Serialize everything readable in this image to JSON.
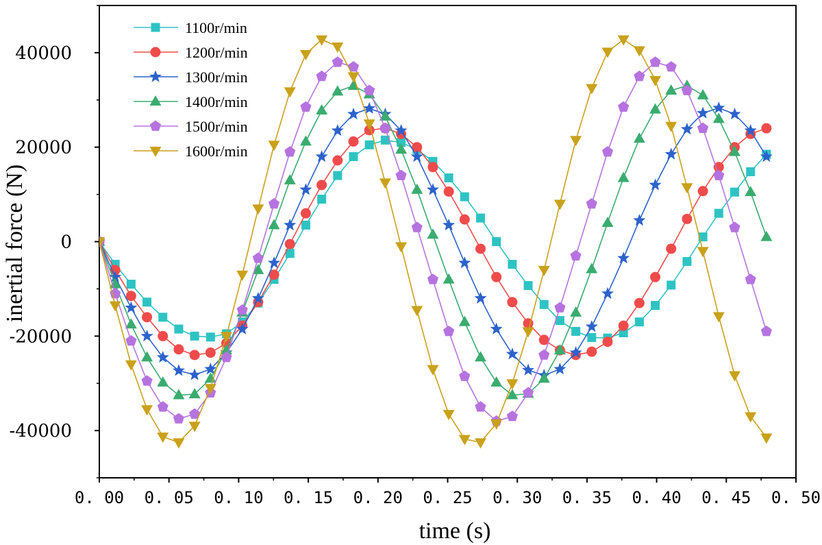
{
  "chart_data": {
    "type": "line",
    "title": "",
    "xlabel": "time (s)",
    "ylabel": "inertial force (N)",
    "xlim": [
      0,
      0.5
    ],
    "ylim": [
      -50000,
      50000
    ],
    "xticks": [
      0,
      0.05,
      0.1,
      0.15,
      0.2,
      0.25,
      0.3,
      0.35,
      0.4,
      0.45,
      0.5
    ],
    "xtick_labels": [
      "0. 00",
      "0. 05",
      "0. 10",
      "0. 15",
      "0. 20",
      "0. 25",
      "0. 30",
      "0. 35",
      "0. 40",
      "0. 45",
      "0. 50"
    ],
    "yticks": [
      -40000,
      -20000,
      0,
      20000,
      40000
    ],
    "ytick_labels": [
      "-40000",
      "-20000",
      "0",
      "20000",
      "40000"
    ],
    "grid": false,
    "legend_position": "top-left",
    "sample_step_s": 0.0114,
    "series": [
      {
        "name": "1100r/min",
        "color": "#2ec3c3",
        "marker": "square",
        "values": [
          0,
          -4800,
          -9000,
          -12800,
          -16000,
          -18500,
          -20000,
          -20200,
          -19500,
          -17000,
          -13000,
          -8000,
          -2500,
          3500,
          9000,
          14000,
          18000,
          20500,
          21500,
          21000,
          19500,
          17000,
          13500,
          9500,
          5000,
          0,
          -4800,
          -9300,
          -13300,
          -16700,
          -19000,
          -20300,
          -20400,
          -19300,
          -17000,
          -13500,
          -9200,
          -4200,
          1000,
          6000,
          10500,
          14800,
          18500
        ]
      },
      {
        "name": "1200r/min",
        "color": "#ef4b4b",
        "marker": "circle",
        "values": [
          0,
          -6000,
          -11500,
          -16000,
          -20000,
          -22800,
          -24000,
          -23500,
          -21500,
          -17800,
          -12800,
          -7000,
          -500,
          6000,
          12000,
          17200,
          21200,
          23600,
          24000,
          22800,
          20000,
          15800,
          10600,
          4700,
          -1500,
          -7500,
          -12800,
          -17300,
          -20800,
          -23000,
          -24000,
          -23300,
          -21200,
          -17800,
          -13000,
          -7500,
          -1500,
          4800,
          10700,
          15800,
          20000,
          22800,
          24000
        ]
      },
      {
        "name": "1300r/min",
        "color": "#2c62cc",
        "marker": "star",
        "values": [
          0,
          -7500,
          -14000,
          -20000,
          -24500,
          -27300,
          -28200,
          -27000,
          -23500,
          -18500,
          -12000,
          -4500,
          3500,
          11000,
          18000,
          23500,
          27000,
          28200,
          27000,
          23500,
          18000,
          11000,
          3500,
          -4500,
          -12000,
          -18500,
          -23800,
          -27200,
          -28300,
          -27000,
          -23500,
          -18000,
          -11000,
          -3500,
          4500,
          12000,
          18500,
          23800,
          27200,
          28300,
          27000,
          23500,
          18000
        ]
      },
      {
        "name": "1400r/min",
        "color": "#3aac6f",
        "marker": "triangle-up",
        "values": [
          0,
          -9000,
          -17500,
          -24500,
          -29800,
          -32500,
          -32300,
          -29000,
          -23000,
          -15000,
          -6000,
          3500,
          13000,
          21200,
          27800,
          31800,
          33000,
          31200,
          26500,
          19500,
          11000,
          1500,
          -8000,
          -17000,
          -24500,
          -29800,
          -32500,
          -32200,
          -29000,
          -23000,
          -15000,
          -5800,
          4000,
          13500,
          21800,
          28000,
          32000,
          33000,
          31000,
          26000,
          19000,
          10500,
          1000
        ]
      },
      {
        "name": "1500r/min",
        "color": "#b673e0",
        "marker": "pentagon",
        "values": [
          0,
          -11000,
          -21000,
          -29500,
          -35000,
          -37500,
          -36500,
          -32000,
          -24500,
          -14500,
          -3500,
          8000,
          19000,
          28500,
          35000,
          38000,
          37000,
          32000,
          24000,
          14000,
          3000,
          -8000,
          -19000,
          -28500,
          -35000,
          -38000,
          -37000,
          -32000,
          -24000,
          -14000,
          -3000,
          8000,
          19000,
          28500,
          35000,
          38000,
          37000,
          32000,
          24000,
          14000,
          3000,
          -8000,
          -19000
        ]
      },
      {
        "name": "1600r/min",
        "color": "#caa11a",
        "marker": "triangle-down",
        "values": [
          0,
          -13500,
          -26000,
          -35500,
          -41300,
          -42500,
          -39000,
          -31000,
          -20000,
          -7000,
          7000,
          20500,
          31800,
          39700,
          42800,
          41300,
          35000,
          25000,
          12500,
          -1000,
          -14500,
          -27000,
          -36500,
          -41800,
          -42500,
          -38500,
          -30000,
          -19000,
          -6000,
          8000,
          21500,
          32500,
          40200,
          42800,
          40500,
          34200,
          24500,
          11500,
          -2000,
          -15800,
          -28300,
          -37000,
          -41500
        ]
      }
    ]
  }
}
